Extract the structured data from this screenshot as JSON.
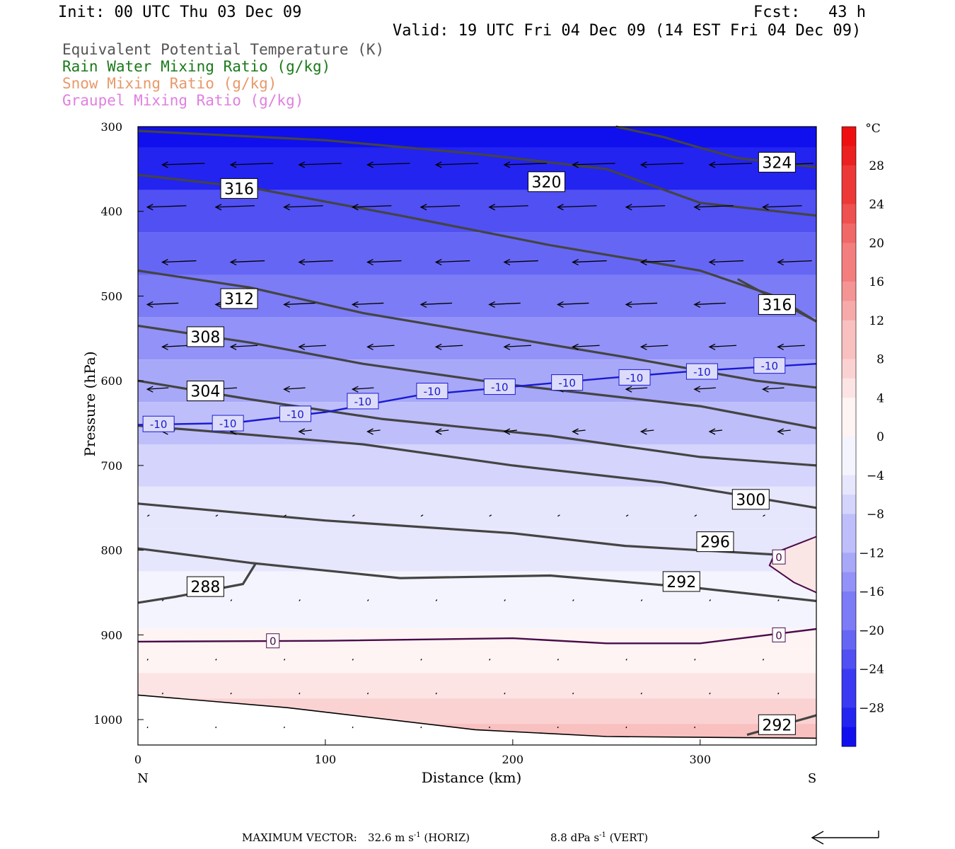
{
  "header": {
    "init": "Init: 00 UTC Thu 03 Dec 09",
    "fcst": "Fcst:   43 h",
    "valid": "Valid: 19 UTC Fri 04 Dec 09 (14 EST Fri 04 Dec 09)"
  },
  "legend": [
    {
      "label": "Equivalent Potential Temperature (K)",
      "color": "#555555"
    },
    {
      "label": "Rain Water Mixing Ratio (g/kg)",
      "color": "#1a7a1a"
    },
    {
      "label": "Snow Mixing Ratio (g/kg)",
      "color": "#e8996a"
    },
    {
      "label": "Graupel Mixing Ratio (g/kg)",
      "color": "#e080e0"
    }
  ],
  "chart_data": {
    "type": "cross-section",
    "xlabel": "Distance (km)",
    "ylabel": "Pressure (hPa)",
    "xlim": [
      0,
      362
    ],
    "ylim": [
      1030,
      300
    ],
    "x_ticks": [
      0,
      100,
      200,
      300
    ],
    "y_ticks": [
      300,
      400,
      500,
      600,
      700,
      800,
      900,
      1000
    ],
    "endpoints": {
      "left": "N",
      "right": "S"
    },
    "colorbar": {
      "unit": "°C",
      "range": [
        -32,
        32
      ],
      "labels": [
        28,
        24,
        20,
        16,
        12,
        8,
        4,
        0,
        -4,
        -8,
        -12,
        -16,
        -20,
        -24,
        -28
      ],
      "colors_cold": [
        "#1010ee",
        "#2424f0",
        "#3a3af2",
        "#5050f3",
        "#6666f5",
        "#7c7cf6",
        "#9292f8",
        "#a8a8f9",
        "#bebefb",
        "#d4d4fc",
        "#e6e6fd",
        "#f4f4fe"
      ],
      "colors_warm": [
        "#fff4f4",
        "#fde4e4",
        "#fbd2d2",
        "#f9c0c0",
        "#f7aaaa",
        "#f59494",
        "#f37e7e",
        "#f16868",
        "#ef5050",
        "#ed3838",
        "#eb2020",
        "#ee1010"
      ]
    },
    "temperature_profile": [
      {
        "p": 300,
        "t": -30
      },
      {
        "p": 350,
        "t": -26
      },
      {
        "p": 400,
        "t": -23
      },
      {
        "p": 450,
        "t": -20
      },
      {
        "p": 500,
        "t": -17
      },
      {
        "p": 550,
        "t": -14
      },
      {
        "p": 600,
        "t": -11
      },
      {
        "p": 650,
        "t": -9
      },
      {
        "p": 700,
        "t": -7
      },
      {
        "p": 750,
        "t": -5
      },
      {
        "p": 800,
        "t": -3
      },
      {
        "p": 850,
        "t": -2
      },
      {
        "p": 880,
        "t": -1
      },
      {
        "p": 905,
        "t": 0
      },
      {
        "p": 930,
        "t": 1.5
      },
      {
        "p": 960,
        "t": 3
      },
      {
        "p": 990,
        "t": 5
      },
      {
        "p": 1020,
        "t": 7
      }
    ],
    "theta_e_contours": [
      {
        "value": 324,
        "label": "324",
        "label_at": [
          341,
          342
        ],
        "points": [
          [
            255,
            300
          ],
          [
            280,
            312
          ],
          [
            300,
            325
          ],
          [
            320,
            337
          ],
          [
            362,
            348
          ]
        ]
      },
      {
        "value": 320,
        "label": "320",
        "label_at": [
          218,
          365
        ],
        "points": [
          [
            0,
            305
          ],
          [
            100,
            316
          ],
          [
            180,
            332
          ],
          [
            250,
            350
          ],
          [
            300,
            390
          ],
          [
            362,
            405
          ]
        ]
      },
      {
        "value": 316,
        "label": "316",
        "label_at": [
          54,
          373
        ],
        "points": [
          [
            0,
            357
          ],
          [
            60,
            372
          ],
          [
            140,
            405
          ],
          [
            220,
            440
          ],
          [
            300,
            470
          ],
          [
            340,
            500
          ],
          [
            362,
            530
          ]
        ]
      },
      {
        "value": 316,
        "label": "316",
        "label_at": [
          341,
          510
        ],
        "points": [
          [
            320,
            480
          ],
          [
            362,
            530
          ]
        ]
      },
      {
        "value": 312,
        "label": "312",
        "label_at": [
          54,
          503
        ],
        "points": [
          [
            0,
            470
          ],
          [
            60,
            490
          ],
          [
            120,
            520
          ],
          [
            200,
            550
          ],
          [
            260,
            572
          ],
          [
            330,
            600
          ],
          [
            362,
            608
          ]
        ]
      },
      {
        "value": 308,
        "label": "308",
        "label_at": [
          36,
          548
        ],
        "points": [
          [
            0,
            535
          ],
          [
            60,
            555
          ],
          [
            120,
            580
          ],
          [
            200,
            605
          ],
          [
            300,
            630
          ],
          [
            362,
            656
          ]
        ]
      },
      {
        "value": 304,
        "label": "304",
        "label_at": [
          36,
          612
        ],
        "points": [
          [
            0,
            600
          ],
          [
            60,
            622
          ],
          [
            130,
            645
          ],
          [
            220,
            665
          ],
          [
            300,
            690
          ],
          [
            362,
            700
          ]
        ]
      },
      {
        "value": 300,
        "label": "300",
        "label_at": [
          327,
          740
        ],
        "points": [
          [
            0,
            653
          ],
          [
            40,
            660
          ],
          [
            120,
            675
          ],
          [
            200,
            700
          ],
          [
            280,
            720
          ],
          [
            362,
            750
          ]
        ]
      },
      {
        "value": 296,
        "label": "296",
        "label_at": [
          308,
          790
        ],
        "points": [
          [
            0,
            745
          ],
          [
            100,
            765
          ],
          [
            200,
            780
          ],
          [
            260,
            795
          ],
          [
            362,
            808
          ]
        ]
      },
      {
        "value": 292,
        "label": "292",
        "label_at": [
          290,
          837
        ],
        "points": [
          [
            0,
            798
          ],
          [
            60,
            815
          ],
          [
            140,
            833
          ],
          [
            220,
            830
          ],
          [
            300,
            845
          ],
          [
            362,
            860
          ]
        ]
      },
      {
        "value": 288,
        "label": "288",
        "label_at": [
          36,
          843
        ],
        "points": [
          [
            0,
            862
          ],
          [
            20,
            855
          ],
          [
            56,
            840
          ],
          [
            63,
            815
          ]
        ]
      },
      {
        "value": 292,
        "label": "292",
        "label_at": [
          341,
          1006
        ],
        "points": [
          [
            325,
            1018
          ],
          [
            362,
            995
          ]
        ]
      }
    ],
    "isotherm_minus10": {
      "label": "-10",
      "points": [
        [
          0,
          652
        ],
        [
          50,
          650
        ],
        [
          100,
          637
        ],
        [
          150,
          617
        ],
        [
          200,
          607
        ],
        [
          250,
          597
        ],
        [
          300,
          588
        ],
        [
          362,
          580
        ]
      ]
    },
    "isotherm_zero": {
      "label": "0",
      "points": [
        [
          0,
          908
        ],
        [
          100,
          907
        ],
        [
          200,
          904
        ],
        [
          250,
          910
        ],
        [
          300,
          910
        ],
        [
          362,
          893
        ]
      ]
    },
    "isotherm_zero_warm_pocket": {
      "label": "0",
      "points": [
        [
          362,
          784
        ],
        [
          340,
          803
        ],
        [
          337,
          818
        ],
        [
          350,
          838
        ],
        [
          362,
          850
        ]
      ]
    },
    "ground_line": [
      [
        0,
        971
      ],
      [
        80,
        986
      ],
      [
        180,
        1012
      ],
      [
        250,
        1020
      ],
      [
        362,
        1022
      ]
    ]
  },
  "footer": {
    "max_vector_label": "MAXIMUM VECTOR:",
    "horiz_value": "32.6 m s",
    "horiz_suffix": " (HORIZ)",
    "vert_value": "8.8 dPa s",
    "vert_suffix": " (VERT)",
    "exponent": "-1"
  }
}
